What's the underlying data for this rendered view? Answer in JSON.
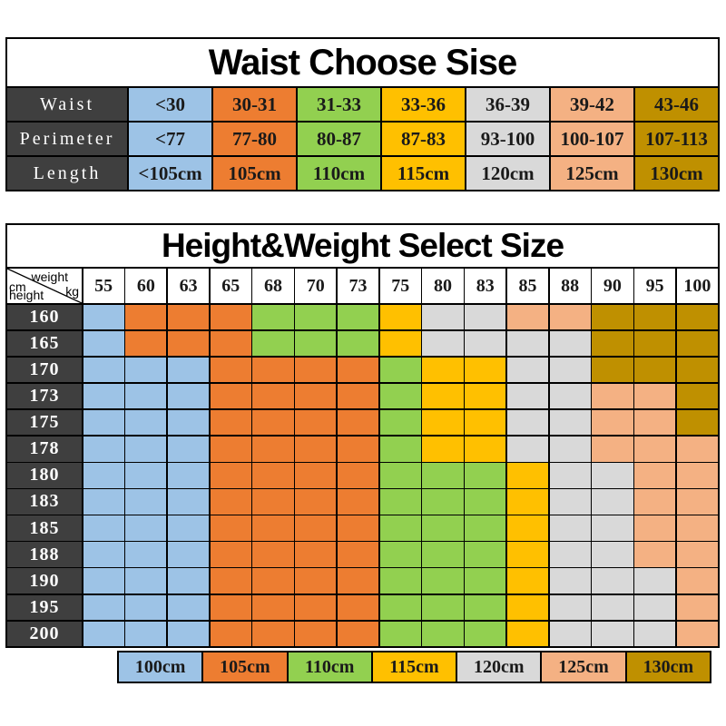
{
  "palette": {
    "size_colors": {
      "100cm": "#9DC3E6",
      "105cm": "#ED7D31",
      "110cm": "#92D050",
      "115cm": "#FFC000",
      "120cm": "#D9D9D9",
      "125cm": "#F4B183",
      "130cm": "#BF9000"
    },
    "label_dark": "#3F3F3F",
    "border": "#000000",
    "cell_text": "#1A1A1A"
  },
  "chart_data": [
    {
      "type": "table",
      "title": "Waist Choose Sise",
      "column_colors": [
        "100cm",
        "105cm",
        "110cm",
        "115cm",
        "120cm",
        "125cm",
        "130cm"
      ],
      "rows": [
        {
          "label": "Waist",
          "cells": [
            "<30",
            "30-31",
            "31-33",
            "33-36",
            "36-39",
            "39-42",
            "43-46"
          ]
        },
        {
          "label": "Perimeter",
          "cells": [
            "<77",
            "77-80",
            "80-87",
            "87-83",
            "93-100",
            "100-107",
            "107-113"
          ]
        },
        {
          "label": "Length",
          "cells": [
            "<105cm",
            "105cm",
            "110cm",
            "115cm",
            "120cm",
            "125cm",
            "130cm"
          ]
        }
      ]
    },
    {
      "type": "heatmap",
      "title": "Height&Weight Select Size",
      "corner": {
        "weight": "weight",
        "kg": "kg",
        "cm": "cm",
        "height": "height"
      },
      "x_ticks": [
        "55",
        "60",
        "63",
        "65",
        "68",
        "70",
        "73",
        "75",
        "80",
        "83",
        "85",
        "88",
        "90",
        "95",
        "100"
      ],
      "y_ticks": [
        "160",
        "165",
        "170",
        "173",
        "175",
        "178",
        "180",
        "183",
        "185",
        "188",
        "190",
        "195",
        "200"
      ],
      "cells": [
        [
          "100cm",
          "105cm",
          "105cm",
          "105cm",
          "110cm",
          "110cm",
          "110cm",
          "115cm",
          "120cm",
          "120cm",
          "125cm",
          "125cm",
          "130cm",
          "130cm",
          "130cm"
        ],
        [
          "100cm",
          "105cm",
          "105cm",
          "105cm",
          "110cm",
          "110cm",
          "110cm",
          "115cm",
          "120cm",
          "120cm",
          "120cm",
          "120cm",
          "130cm",
          "130cm",
          "130cm"
        ],
        [
          "100cm",
          "100cm",
          "100cm",
          "105cm",
          "105cm",
          "105cm",
          "105cm",
          "110cm",
          "115cm",
          "115cm",
          "120cm",
          "120cm",
          "130cm",
          "130cm",
          "130cm"
        ],
        [
          "100cm",
          "100cm",
          "100cm",
          "105cm",
          "105cm",
          "105cm",
          "105cm",
          "110cm",
          "115cm",
          "115cm",
          "120cm",
          "120cm",
          "125cm",
          "125cm",
          "130cm"
        ],
        [
          "100cm",
          "100cm",
          "100cm",
          "105cm",
          "105cm",
          "105cm",
          "105cm",
          "110cm",
          "115cm",
          "115cm",
          "120cm",
          "120cm",
          "125cm",
          "125cm",
          "130cm"
        ],
        [
          "100cm",
          "100cm",
          "100cm",
          "105cm",
          "105cm",
          "105cm",
          "105cm",
          "110cm",
          "115cm",
          "115cm",
          "120cm",
          "120cm",
          "125cm",
          "125cm",
          "125cm"
        ],
        [
          "100cm",
          "100cm",
          "100cm",
          "105cm",
          "105cm",
          "105cm",
          "105cm",
          "110cm",
          "110cm",
          "110cm",
          "115cm",
          "120cm",
          "120cm",
          "125cm",
          "125cm"
        ],
        [
          "100cm",
          "100cm",
          "100cm",
          "105cm",
          "105cm",
          "105cm",
          "105cm",
          "110cm",
          "110cm",
          "110cm",
          "115cm",
          "120cm",
          "120cm",
          "125cm",
          "125cm"
        ],
        [
          "100cm",
          "100cm",
          "100cm",
          "105cm",
          "105cm",
          "105cm",
          "105cm",
          "110cm",
          "110cm",
          "110cm",
          "115cm",
          "120cm",
          "120cm",
          "125cm",
          "125cm"
        ],
        [
          "100cm",
          "100cm",
          "100cm",
          "105cm",
          "105cm",
          "105cm",
          "105cm",
          "110cm",
          "110cm",
          "110cm",
          "115cm",
          "120cm",
          "120cm",
          "125cm",
          "125cm"
        ],
        [
          "100cm",
          "100cm",
          "100cm",
          "105cm",
          "105cm",
          "105cm",
          "105cm",
          "110cm",
          "110cm",
          "110cm",
          "115cm",
          "120cm",
          "120cm",
          "120cm",
          "125cm"
        ],
        [
          "100cm",
          "100cm",
          "100cm",
          "105cm",
          "105cm",
          "105cm",
          "105cm",
          "110cm",
          "110cm",
          "110cm",
          "115cm",
          "120cm",
          "120cm",
          "120cm",
          "125cm"
        ],
        [
          "100cm",
          "100cm",
          "100cm",
          "105cm",
          "105cm",
          "105cm",
          "105cm",
          "110cm",
          "110cm",
          "110cm",
          "115cm",
          "120cm",
          "120cm",
          "120cm",
          "125cm"
        ]
      ],
      "legend": [
        "100cm",
        "105cm",
        "110cm",
        "115cm",
        "120cm",
        "125cm",
        "130cm"
      ]
    }
  ]
}
